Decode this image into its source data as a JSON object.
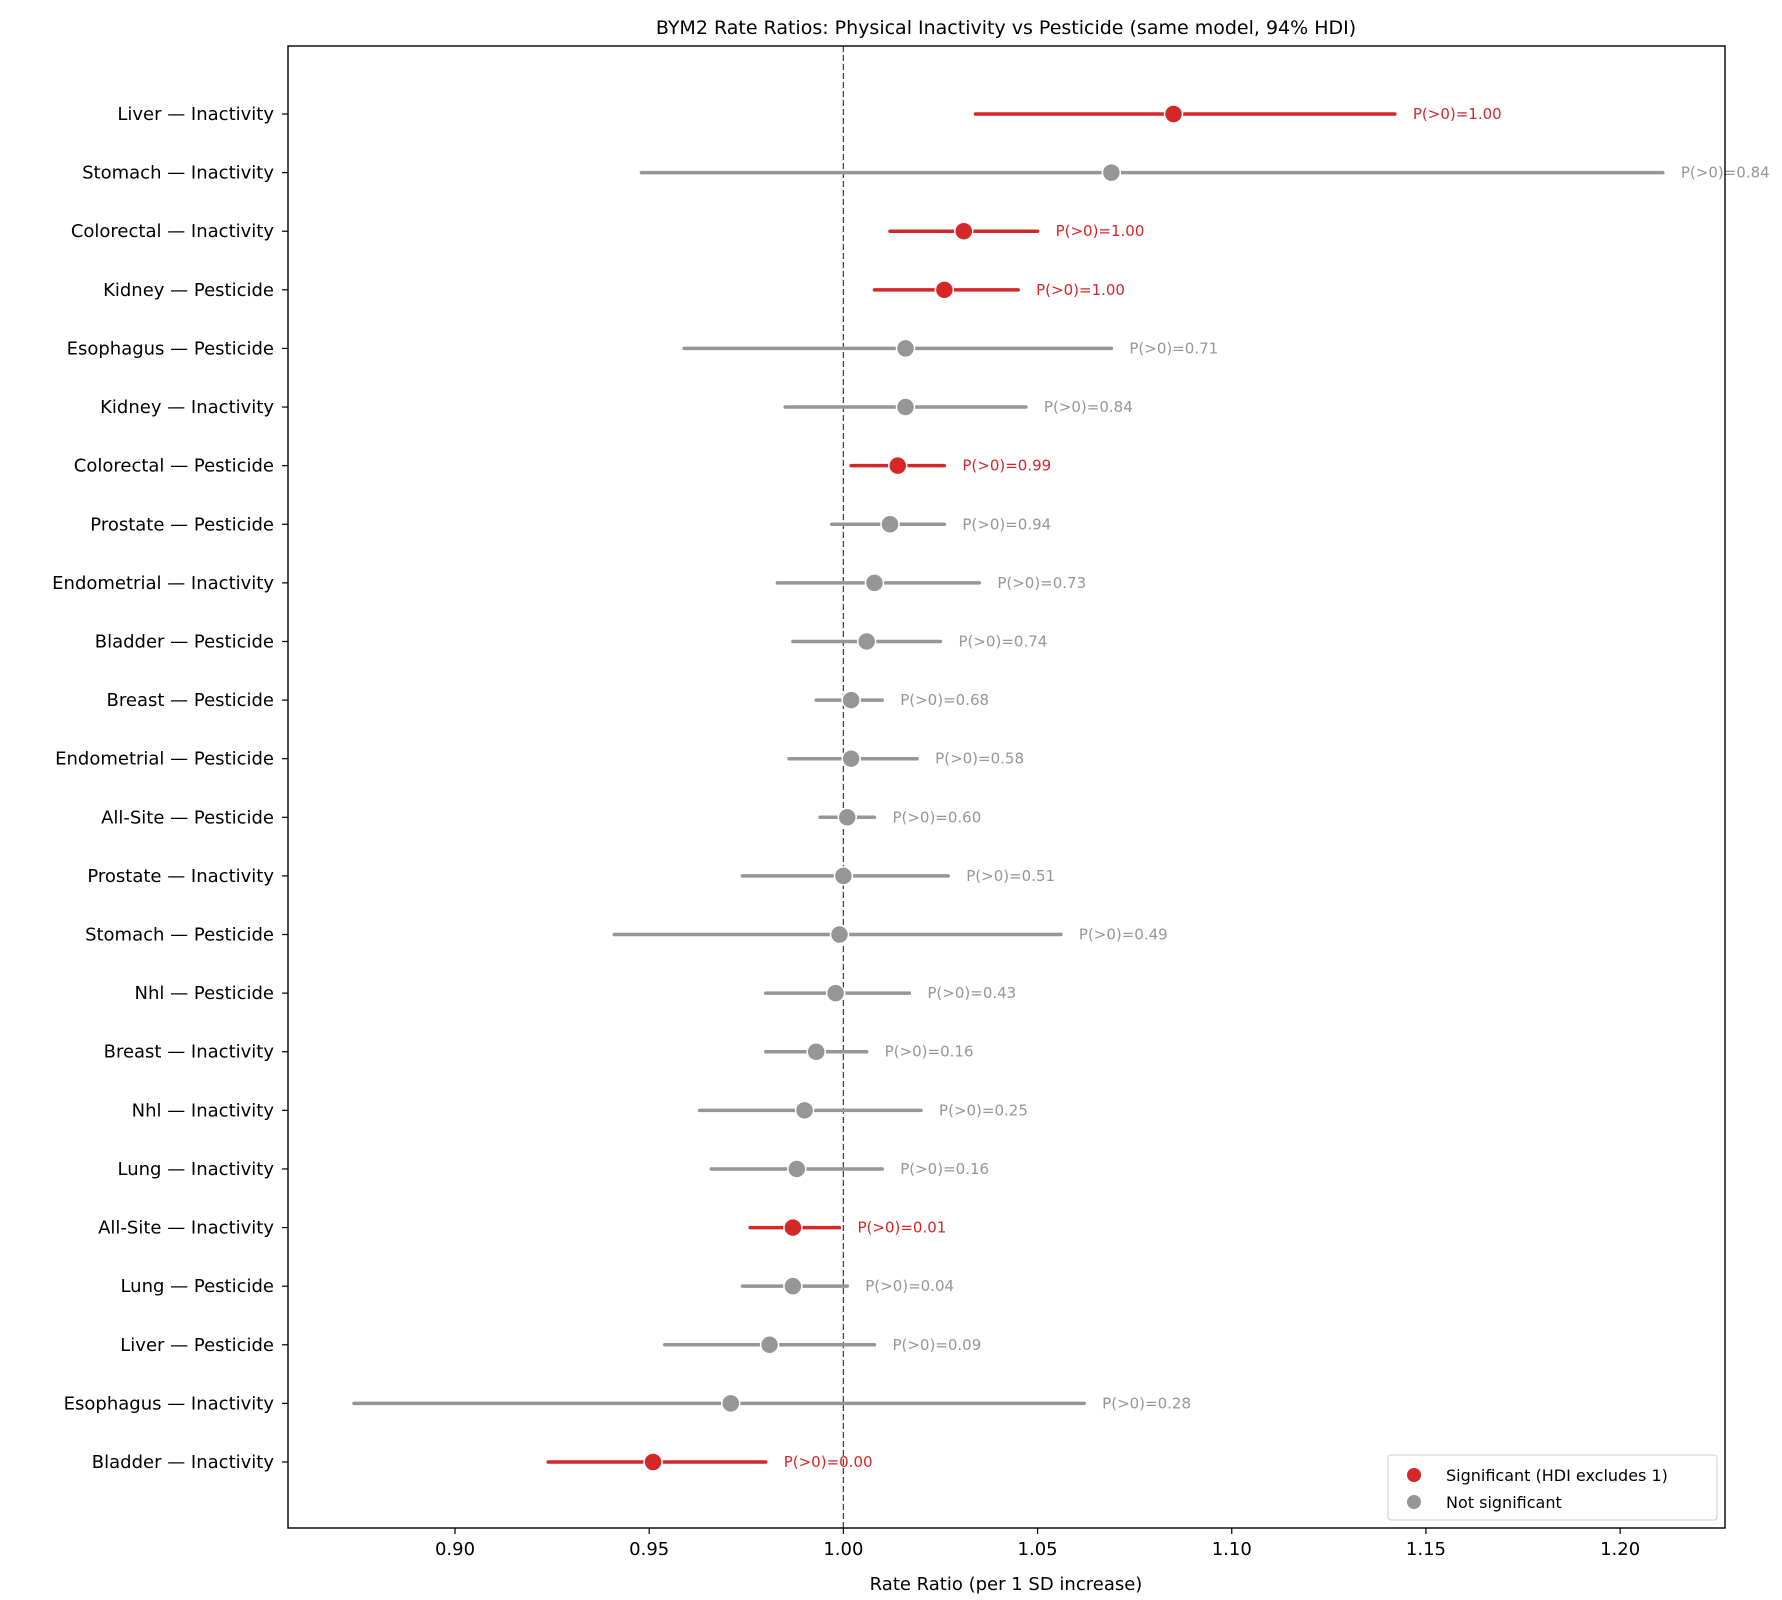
{
  "chart_data": {
    "type": "scatter",
    "title": "BYM2 Rate Ratios: Physical Inactivity vs Pesticide (same model, 94% HDI)",
    "xlabel": "Rate Ratio (per 1 SD increase)",
    "ylabel": "",
    "xlim": [
      0.857,
      1.227
    ],
    "xticks": [
      "0.90",
      "0.95",
      "1.00",
      "1.05",
      "1.10",
      "1.15",
      "1.20"
    ],
    "reference_line": 1.0,
    "grid": false,
    "legend": {
      "placement": "bottom-right",
      "entries": [
        {
          "label": "Significant (HDI excludes 1)",
          "color": "#d62728"
        },
        {
          "label": "Not significant",
          "color": "#969696"
        }
      ]
    },
    "colors": {
      "significant": "#d62728",
      "not_significant": "#969696"
    },
    "rows": [
      {
        "label": "Liver — Inactivity",
        "mean": 1.085,
        "low": 1.034,
        "high": 1.142,
        "p": "P(>0)=1.00",
        "significant": true
      },
      {
        "label": "Stomach — Inactivity",
        "mean": 1.069,
        "low": 0.948,
        "high": 1.211,
        "p": "P(>0)=0.84",
        "significant": false
      },
      {
        "label": "Colorectal — Inactivity",
        "mean": 1.031,
        "low": 1.012,
        "high": 1.05,
        "p": "P(>0)=1.00",
        "significant": true
      },
      {
        "label": "Kidney — Pesticide",
        "mean": 1.026,
        "low": 1.008,
        "high": 1.045,
        "p": "P(>0)=1.00",
        "significant": true
      },
      {
        "label": "Esophagus — Pesticide",
        "mean": 1.016,
        "low": 0.959,
        "high": 1.069,
        "p": "P(>0)=0.71",
        "significant": false
      },
      {
        "label": "Kidney — Inactivity",
        "mean": 1.016,
        "low": 0.985,
        "high": 1.047,
        "p": "P(>0)=0.84",
        "significant": false
      },
      {
        "label": "Colorectal — Pesticide",
        "mean": 1.014,
        "low": 1.002,
        "high": 1.026,
        "p": "P(>0)=0.99",
        "significant": true
      },
      {
        "label": "Prostate — Pesticide",
        "mean": 1.012,
        "low": 0.997,
        "high": 1.026,
        "p": "P(>0)=0.94",
        "significant": false
      },
      {
        "label": "Endometrial — Inactivity",
        "mean": 1.008,
        "low": 0.983,
        "high": 1.035,
        "p": "P(>0)=0.73",
        "significant": false
      },
      {
        "label": "Bladder — Pesticide",
        "mean": 1.006,
        "low": 0.987,
        "high": 1.025,
        "p": "P(>0)=0.74",
        "significant": false
      },
      {
        "label": "Breast — Pesticide",
        "mean": 1.002,
        "low": 0.993,
        "high": 1.01,
        "p": "P(>0)=0.68",
        "significant": false
      },
      {
        "label": "Endometrial — Pesticide",
        "mean": 1.002,
        "low": 0.986,
        "high": 1.019,
        "p": "P(>0)=0.58",
        "significant": false
      },
      {
        "label": "All-Site — Pesticide",
        "mean": 1.001,
        "low": 0.994,
        "high": 1.008,
        "p": "P(>0)=0.60",
        "significant": false
      },
      {
        "label": "Prostate — Inactivity",
        "mean": 1.0,
        "low": 0.974,
        "high": 1.027,
        "p": "P(>0)=0.51",
        "significant": false
      },
      {
        "label": "Stomach — Pesticide",
        "mean": 0.999,
        "low": 0.941,
        "high": 1.056,
        "p": "P(>0)=0.49",
        "significant": false
      },
      {
        "label": "Nhl — Pesticide",
        "mean": 0.998,
        "low": 0.98,
        "high": 1.017,
        "p": "P(>0)=0.43",
        "significant": false
      },
      {
        "label": "Breast — Inactivity",
        "mean": 0.993,
        "low": 0.98,
        "high": 1.006,
        "p": "P(>0)=0.16",
        "significant": false
      },
      {
        "label": "Nhl — Inactivity",
        "mean": 0.99,
        "low": 0.963,
        "high": 1.02,
        "p": "P(>0)=0.25",
        "significant": false
      },
      {
        "label": "Lung — Inactivity",
        "mean": 0.988,
        "low": 0.966,
        "high": 1.01,
        "p": "P(>0)=0.16",
        "significant": false
      },
      {
        "label": "All-Site — Inactivity",
        "mean": 0.987,
        "low": 0.976,
        "high": 0.999,
        "p": "P(>0)=0.01",
        "significant": true
      },
      {
        "label": "Lung — Pesticide",
        "mean": 0.987,
        "low": 0.974,
        "high": 1.001,
        "p": "P(>0)=0.04",
        "significant": false
      },
      {
        "label": "Liver — Pesticide",
        "mean": 0.981,
        "low": 0.954,
        "high": 1.008,
        "p": "P(>0)=0.09",
        "significant": false
      },
      {
        "label": "Esophagus — Inactivity",
        "mean": 0.971,
        "low": 0.874,
        "high": 1.062,
        "p": "P(>0)=0.28",
        "significant": false
      },
      {
        "label": "Bladder — Inactivity",
        "mean": 0.951,
        "low": 0.924,
        "high": 0.98,
        "p": "P(>0)=0.00",
        "significant": true
      }
    ]
  }
}
